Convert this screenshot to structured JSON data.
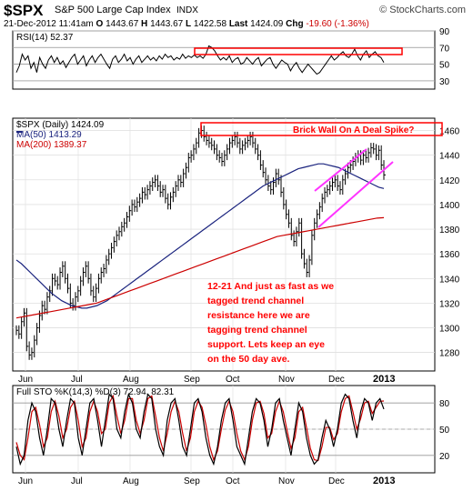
{
  "header": {
    "symbol": "$SPX",
    "name": "S&P 500 Large Cap Index",
    "exchange": "INDX",
    "brand": "© StockCharts.com",
    "date": "21-Dec-2012 11:41am",
    "open_label": "O",
    "open": "1443.67",
    "high_label": "H",
    "high": "1443.67",
    "low_label": "L",
    "low": "1422.58",
    "last_label": "Last",
    "last": "1424.09",
    "chg_label": "Chg",
    "chg": "-19.60 (-1.36%)"
  },
  "colors": {
    "price_bars": "#000000",
    "ma50": "#1a237e",
    "ma200": "#cc0000",
    "stoch_k": "#000000",
    "stoch_d": "#cc0000",
    "channel": "#ff33ff",
    "annotation": "#ff0000"
  },
  "chart_data": [
    {
      "type": "line",
      "panel": "RSI",
      "legend": "RSI(14) 52.37",
      "ylim": [
        20,
        90
      ],
      "yticks": [
        90,
        70,
        50,
        30,
        10
      ],
      "x_ticks": [],
      "series": [
        {
          "name": "RSI(14)",
          "values": [
            40,
            48,
            62,
            55,
            60,
            45,
            52,
            40,
            58,
            50,
            45,
            55,
            60,
            52,
            58,
            50,
            54,
            46,
            52,
            58,
            62,
            50,
            55,
            60,
            48,
            55,
            60,
            52,
            58,
            62,
            56,
            50,
            45,
            56,
            60,
            52,
            56,
            62,
            54,
            58,
            50,
            56,
            60,
            52,
            56,
            60,
            55,
            58,
            54,
            60,
            56,
            62,
            58,
            60,
            55,
            58,
            56,
            62,
            57,
            60,
            58,
            61,
            58,
            60,
            57,
            62,
            72,
            70,
            66,
            60,
            55,
            58,
            55,
            60,
            52,
            56,
            58,
            50,
            52,
            58,
            54,
            50,
            55,
            58,
            48,
            52,
            56,
            58,
            50,
            45,
            50,
            55,
            52,
            50,
            42,
            48,
            52,
            45,
            40,
            45,
            50,
            46,
            42,
            38,
            40,
            45,
            50,
            55,
            60,
            55,
            58,
            62,
            65,
            60,
            58,
            62,
            68,
            60,
            55,
            62,
            66,
            58,
            62,
            65,
            60,
            58,
            52
          ]
        }
      ]
    },
    {
      "type": "line",
      "panel": "Price",
      "legend": "$SPX (Daily) 1424.09",
      "ylim": [
        1265,
        1470
      ],
      "yticks": [
        1460,
        1440,
        1420,
        1400,
        1380,
        1360,
        1340,
        1320,
        1300,
        1280
      ],
      "x_ticks": [
        "Jun",
        "Jul",
        "Aug",
        "Sep",
        "Oct",
        "Nov",
        "Dec",
        "2013"
      ],
      "series": [
        {
          "name": "$SPX",
          "values": [
            1298,
            1295,
            1305,
            1312,
            1285,
            1278,
            1280,
            1290,
            1300,
            1310,
            1318,
            1315,
            1325,
            1330,
            1340,
            1338,
            1335,
            1345,
            1350,
            1340,
            1332,
            1320,
            1318,
            1325,
            1330,
            1338,
            1345,
            1350,
            1340,
            1330,
            1325,
            1332,
            1340,
            1345,
            1348,
            1355,
            1360,
            1365,
            1370,
            1375,
            1378,
            1382,
            1385,
            1390,
            1395,
            1400,
            1398,
            1402,
            1405,
            1410,
            1408,
            1412,
            1415,
            1418,
            1420,
            1415,
            1410,
            1412,
            1405,
            1400,
            1406,
            1410,
            1415,
            1420,
            1418,
            1425,
            1430,
            1438,
            1440,
            1445,
            1450,
            1458,
            1460,
            1455,
            1452,
            1450,
            1448,
            1445,
            1440,
            1438,
            1435,
            1440,
            1445,
            1450,
            1452,
            1455,
            1450,
            1445,
            1448,
            1450,
            1452,
            1455,
            1450,
            1445,
            1440,
            1432,
            1426,
            1420,
            1415,
            1412,
            1418,
            1425,
            1420,
            1410,
            1400,
            1392,
            1385,
            1375,
            1370,
            1378,
            1385,
            1360,
            1352,
            1345,
            1355,
            1375,
            1385,
            1392,
            1398,
            1405,
            1410,
            1412,
            1415,
            1418,
            1420,
            1415,
            1412,
            1420,
            1425,
            1430,
            1432,
            1435,
            1438,
            1440,
            1436,
            1440,
            1438,
            1442,
            1446,
            1445,
            1440,
            1444,
            1432,
            1424
          ]
        },
        {
          "name": "MA(50) 1413.29",
          "values": [
            1355,
            1352,
            1348,
            1344,
            1340,
            1336,
            1332,
            1328,
            1325,
            1322,
            1320,
            1318,
            1317,
            1316,
            1316,
            1317,
            1318,
            1320,
            1322,
            1325,
            1328,
            1331,
            1334,
            1337,
            1340,
            1343,
            1346,
            1349,
            1352,
            1355,
            1358,
            1361,
            1364,
            1367,
            1370,
            1373,
            1376,
            1379,
            1382,
            1385,
            1388,
            1391,
            1394,
            1397,
            1400,
            1403,
            1406,
            1409,
            1412,
            1415,
            1417,
            1419,
            1421,
            1423,
            1425,
            1427,
            1429,
            1430,
            1431,
            1432,
            1433,
            1433,
            1432,
            1431,
            1430,
            1428,
            1426,
            1424,
            1422,
            1420,
            1418,
            1416,
            1414,
            1413
          ]
        },
        {
          "name": "MA(200) 1389.37",
          "values": [
            1308,
            1309,
            1310,
            1311,
            1312,
            1313,
            1314,
            1315,
            1316,
            1317,
            1318,
            1319,
            1320,
            1322,
            1324,
            1326,
            1328,
            1330,
            1332,
            1334,
            1336,
            1338,
            1340,
            1342,
            1344,
            1346,
            1348,
            1350,
            1352,
            1354,
            1356,
            1358,
            1360,
            1362,
            1364,
            1366,
            1368,
            1370,
            1372,
            1374,
            1375,
            1376,
            1377,
            1378,
            1379,
            1380,
            1381,
            1382,
            1383,
            1384,
            1385,
            1386,
            1387,
            1388,
            1389,
            1389.37
          ]
        }
      ]
    },
    {
      "type": "line",
      "panel": "Stochastics",
      "legend": "Full STO %K(14,3) %D(3) 72.94, 82.31",
      "ylim": [
        0,
        100
      ],
      "yticks": [
        80,
        50,
        20
      ],
      "x_ticks": [
        "Jun",
        "Jul",
        "Aug",
        "Sep",
        "Oct",
        "Nov",
        "Dec",
        "2013"
      ],
      "series": [
        {
          "name": "%K(14,3)",
          "values": [
            30,
            10,
            20,
            60,
            80,
            70,
            40,
            20,
            50,
            85,
            80,
            50,
            30,
            60,
            85,
            80,
            40,
            20,
            50,
            80,
            85,
            60,
            30,
            60,
            90,
            85,
            50,
            40,
            70,
            90,
            80,
            50,
            40,
            70,
            90,
            85,
            50,
            30,
            20,
            60,
            80,
            85,
            60,
            30,
            20,
            50,
            80,
            85,
            70,
            40,
            20,
            10,
            30,
            60,
            80,
            85,
            60,
            30,
            20,
            10,
            40,
            70,
            85,
            80,
            60,
            30,
            50,
            80,
            85,
            60,
            40,
            20,
            50,
            80,
            70,
            40,
            20,
            10,
            15,
            40,
            60,
            50,
            30,
            50,
            80,
            90,
            85,
            60,
            40,
            70,
            85,
            80,
            60,
            80,
            85,
            73
          ]
        },
        {
          "name": "%D(3)",
          "values": [
            35,
            20,
            15,
            40,
            70,
            75,
            55,
            30,
            40,
            70,
            82,
            65,
            40,
            50,
            75,
            82,
            60,
            30,
            40,
            70,
            82,
            70,
            45,
            50,
            80,
            88,
            65,
            45,
            60,
            85,
            85,
            60,
            45,
            60,
            85,
            88,
            65,
            40,
            25,
            45,
            70,
            82,
            70,
            45,
            25,
            40,
            70,
            82,
            75,
            55,
            30,
            15,
            25,
            50,
            72,
            82,
            70,
            45,
            25,
            15,
            30,
            60,
            80,
            82,
            68,
            40,
            45,
            70,
            82,
            70,
            48,
            28,
            40,
            70,
            75,
            52,
            28,
            15,
            14,
            30,
            52,
            52,
            38,
            45,
            70,
            85,
            88,
            70,
            50,
            62,
            80,
            82,
            68,
            75,
            82,
            82.31
          ]
        }
      ]
    }
  ],
  "annotations": {
    "brick_wall": "Brick Wall On A Deal Spike?",
    "note": "12-21 And just as fast as we tagged trend channel resistance here we are tagging trend channel support. Lets keep an eye on the 50 day ave.",
    "note_lines": [
      "12-21 And just as fast as we",
      "tagged trend channel",
      "resistance here we are",
      "tagging trend channel",
      "support. Lets keep an eye",
      "on the 50 day ave."
    ]
  }
}
